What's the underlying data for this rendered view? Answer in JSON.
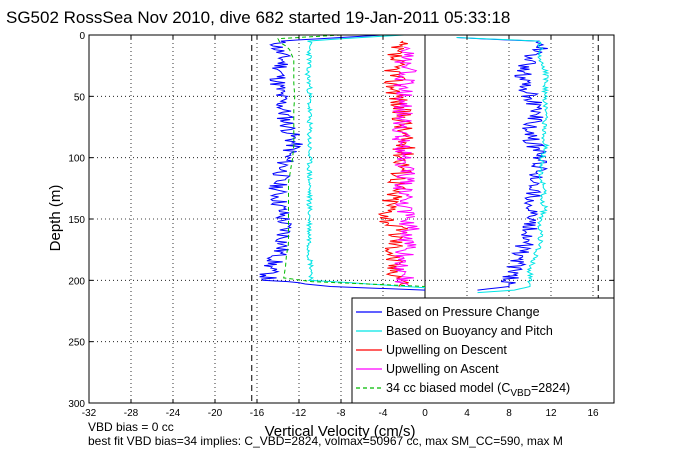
{
  "chart_data": {
    "type": "line",
    "title": "SG502 RossSea Nov 2010, dive 682 started 19-Jan-2011 05:33:18",
    "xlabel": "Vertical Velocity (cm/s)",
    "ylabel": "Depth (m)",
    "xlim": [
      -32,
      18
    ],
    "ylim": [
      300,
      0
    ],
    "y_reversed": true,
    "x_ticks": [
      -32,
      -28,
      -24,
      -20,
      -16,
      -12,
      -8,
      -4,
      0,
      4,
      8,
      12,
      16
    ],
    "x_tick_labels": [
      "-32",
      "-28",
      "-24",
      "-20",
      "-16",
      "-12",
      "-8",
      "-4",
      "0",
      "4",
      "8",
      "12",
      "16"
    ],
    "y_ticks": [
      0,
      50,
      100,
      150,
      200,
      250,
      300
    ],
    "y_tick_labels": [
      "0",
      "50",
      "100",
      "150",
      "200",
      "250",
      "300"
    ],
    "grid": true,
    "legend_position": "bottom-right",
    "reference_lines_x": [
      -16.5,
      16.5
    ],
    "series": [
      {
        "name": "Based on Pressure Change",
        "color": "#0000ff",
        "descent": {
          "depth": [
            0,
            3,
            5,
            8,
            12,
            20,
            30,
            40,
            50,
            60,
            70,
            80,
            90,
            100,
            110,
            120,
            130,
            140,
            150,
            160,
            170,
            180,
            190,
            200,
            205,
            208
          ],
          "velocity": [
            -4,
            -10,
            -14,
            -14,
            -14,
            -13.5,
            -13.8,
            -14,
            -13.8,
            -13.5,
            -13.2,
            -12.8,
            -12.5,
            -13.2,
            -13.5,
            -14,
            -14,
            -13.8,
            -13.5,
            -13.3,
            -13.5,
            -14,
            -14.8,
            -15,
            -9,
            0
          ]
        },
        "ascent": {
          "depth": [
            208,
            205,
            200,
            190,
            180,
            170,
            160,
            150,
            140,
            130,
            120,
            110,
            100,
            90,
            80,
            70,
            60,
            50,
            40,
            30,
            20,
            10,
            5,
            2
          ],
          "velocity": [
            5,
            8,
            8,
            8.5,
            9,
            9.5,
            10,
            10,
            10.2,
            10.3,
            10.5,
            10.8,
            11,
            10.5,
            9.8,
            10.5,
            10.6,
            10,
            9.5,
            9.2,
            10,
            11,
            10,
            3
          ]
        }
      },
      {
        "name": "Based on Buoyancy and Pitch",
        "color": "#00e5e5",
        "descent": {
          "depth": [
            0,
            3,
            5,
            8,
            10,
            20,
            30,
            40,
            50,
            60,
            70,
            80,
            90,
            100,
            110,
            120,
            130,
            140,
            150,
            160,
            170,
            180,
            190,
            200,
            206
          ],
          "velocity": [
            -2,
            -8,
            -11,
            -11,
            -11,
            -11,
            -11.2,
            -11,
            -11,
            -11,
            -11,
            -11,
            -11,
            -11,
            -11,
            -11,
            -11,
            -11,
            -11,
            -11,
            -11,
            -11,
            -10.8,
            -10.8,
            0
          ]
        },
        "ascent": {
          "depth": [
            210,
            208,
            205,
            200,
            190,
            180,
            170,
            160,
            150,
            140,
            135,
            125,
            118,
            110,
            100,
            90,
            80,
            70,
            60,
            50,
            40,
            30,
            20,
            10,
            5,
            2
          ],
          "velocity": [
            5,
            8.5,
            10,
            10,
            10,
            10.5,
            11,
            11,
            11,
            11.5,
            11,
            11.5,
            11,
            11,
            11.2,
            11.5,
            11.3,
            11.4,
            11.5,
            11.4,
            11.5,
            11.5,
            11,
            11,
            11,
            3
          ]
        }
      },
      {
        "name": "Upwelling on Descent",
        "color": "#ff0000",
        "depth": [
          5,
          10,
          20,
          30,
          40,
          50,
          60,
          70,
          80,
          90,
          100,
          110,
          120,
          130,
          140,
          150,
          160,
          170,
          180,
          190,
          200,
          205
        ],
        "velocity": [
          -2.5,
          -3,
          -3,
          -2.8,
          -3,
          -2.5,
          -2.5,
          -2,
          -2.2,
          -2,
          -2,
          -2,
          -2.5,
          -3,
          -3.3,
          -3.5,
          -2.5,
          -2.8,
          -3,
          -3,
          -2,
          -2.5
        ]
      },
      {
        "name": "Upwelling on Ascent",
        "color": "#ff00ff",
        "depth": [
          205,
          200,
          190,
          180,
          170,
          160,
          150,
          140,
          130,
          120,
          110,
          100,
          90,
          80,
          70,
          60,
          50,
          40,
          30,
          20,
          10
        ],
        "velocity": [
          -1.5,
          -2,
          -2,
          -2,
          -1.8,
          -1.5,
          -1.5,
          -2,
          -2.2,
          -2,
          -1.8,
          -2,
          -2,
          -2.5,
          -2,
          -2.2,
          -2,
          -2,
          -1.8,
          -2,
          -2
        ]
      },
      {
        "name": "34 cc biased model (C_VBD=2824)",
        "legend_main": "34 cc biased model (C",
        "legend_sub": "VBD",
        "legend_tail": "=2824)",
        "color": "#00bb00",
        "dashed": true,
        "depth": [
          0,
          3,
          5,
          8,
          10,
          20,
          30,
          40,
          50,
          60,
          70,
          80,
          90,
          100,
          110,
          120,
          130,
          140,
          150,
          160,
          170,
          180,
          190,
          200,
          205
        ],
        "velocity": [
          -8,
          -14,
          -14,
          -13.5,
          -13,
          -12.5,
          -12.5,
          -12.5,
          -12.4,
          -12.5,
          -12.5,
          -12.5,
          -12.5,
          -12.6,
          -12.8,
          -13,
          -13,
          -13,
          -13,
          -13,
          -13,
          -13.2,
          -13.3,
          -13.5,
          0
        ]
      }
    ]
  },
  "footer": {
    "line1": "VBD bias = 0 cc",
    "line2": "best fit VBD bias=34 implies: C_VBD=2824, volmax=50967 cc, max SM_CC=590, max M"
  }
}
